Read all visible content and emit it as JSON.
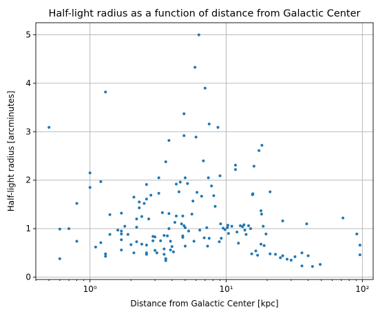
{
  "chart_data": {
    "type": "scatter",
    "title": "Half-light radius as a function of distance from Galactic Center",
    "xlabel": "Distance from Galactic Center [kpc]",
    "ylabel": "Half-light radius [arcminutes]",
    "xscale": "log",
    "xlim": [
      0.4,
      120
    ],
    "ylim": [
      -0.05,
      5.25
    ],
    "x_major_ticks": [
      1,
      10,
      100
    ],
    "x_tick_labels": [
      "10⁰",
      "10¹",
      "10²"
    ],
    "y_ticks": [
      0,
      1,
      2,
      3,
      4,
      5
    ],
    "y_tick_labels": [
      "0",
      "1",
      "2",
      "3",
      "4",
      "5"
    ],
    "grid": true,
    "marker_color": "#1f77b4",
    "points": [
      [
        0.5,
        3.09
      ],
      [
        0.6,
        0.99
      ],
      [
        0.6,
        0.38
      ],
      [
        0.7,
        1.0
      ],
      [
        0.8,
        1.52
      ],
      [
        0.8,
        0.74
      ],
      [
        1.0,
        2.15
      ],
      [
        1.0,
        1.85
      ],
      [
        1.1,
        0.62
      ],
      [
        1.2,
        1.97
      ],
      [
        1.2,
        0.71
      ],
      [
        1.3,
        3.82
      ],
      [
        1.3,
        0.48
      ],
      [
        1.3,
        0.43
      ],
      [
        1.4,
        1.29
      ],
      [
        1.4,
        0.88
      ],
      [
        1.6,
        0.97
      ],
      [
        1.7,
        1.32
      ],
      [
        1.7,
        0.95
      ],
      [
        1.7,
        0.89
      ],
      [
        1.7,
        0.77
      ],
      [
        1.7,
        0.56
      ],
      [
        1.8,
        1.05
      ],
      [
        1.9,
        0.88
      ],
      [
        2.0,
        0.67
      ],
      [
        2.1,
        1.65
      ],
      [
        2.1,
        0.5
      ],
      [
        2.2,
        1.2
      ],
      [
        2.2,
        1.03
      ],
      [
        2.2,
        0.73
      ],
      [
        2.3,
        1.55
      ],
      [
        2.3,
        1.43
      ],
      [
        2.4,
        0.68
      ],
      [
        2.4,
        1.25
      ],
      [
        2.5,
        1.52
      ],
      [
        2.6,
        1.91
      ],
      [
        2.6,
        1.61
      ],
      [
        2.6,
        0.66
      ],
      [
        2.6,
        0.5
      ],
      [
        2.6,
        0.47
      ],
      [
        2.7,
        1.2
      ],
      [
        2.8,
        1.69
      ],
      [
        2.9,
        0.84
      ],
      [
        2.9,
        0.75
      ],
      [
        3.0,
        0.83
      ],
      [
        3.0,
        0.55
      ],
      [
        3.1,
        0.5
      ],
      [
        3.2,
        1.73
      ],
      [
        3.2,
        2.05
      ],
      [
        3.3,
        0.75
      ],
      [
        3.4,
        1.33
      ],
      [
        3.5,
        0.86
      ],
      [
        3.5,
        0.58
      ],
      [
        3.5,
        0.47
      ],
      [
        3.6,
        2.38
      ],
      [
        3.6,
        0.38
      ],
      [
        3.6,
        0.34
      ],
      [
        3.7,
        0.85
      ],
      [
        3.8,
        1.0
      ],
      [
        3.8,
        1.31
      ],
      [
        3.9,
        0.74
      ],
      [
        3.9,
        0.56
      ],
      [
        3.8,
        2.82
      ],
      [
        4.0,
        0.63
      ],
      [
        4.1,
        0.52
      ],
      [
        4.3,
        1.92
      ],
      [
        4.2,
        1.13
      ],
      [
        4.3,
        1.26
      ],
      [
        4.5,
        1.76
      ],
      [
        4.6,
        1.96
      ],
      [
        4.7,
        1.1
      ],
      [
        4.8,
        0.82
      ],
      [
        4.8,
        1.26
      ],
      [
        4.8,
        0.85
      ],
      [
        4.9,
        2.92
      ],
      [
        4.9,
        1.06
      ],
      [
        4.9,
        3.37
      ],
      [
        5.0,
        2.05
      ],
      [
        5.0,
        1.02
      ],
      [
        5.0,
        0.64
      ],
      [
        5.2,
        1.93
      ],
      [
        5.3,
        0.95
      ],
      [
        5.6,
        1.3
      ],
      [
        5.7,
        1.57
      ],
      [
        5.8,
        0.74
      ],
      [
        5.9,
        4.33
      ],
      [
        6.0,
        2.89
      ],
      [
        6.1,
        1.75
      ],
      [
        6.3,
        5.0
      ],
      [
        6.4,
        0.97
      ],
      [
        6.6,
        1.67
      ],
      [
        6.8,
        2.4
      ],
      [
        6.9,
        0.81
      ],
      [
        7.0,
        3.9
      ],
      [
        7.2,
        1.02
      ],
      [
        7.3,
        0.64
      ],
      [
        7.4,
        2.05
      ],
      [
        7.5,
        3.16
      ],
      [
        7.5,
        0.8
      ],
      [
        7.8,
        1.88
      ],
      [
        8.1,
        1.68
      ],
      [
        8.3,
        1.46
      ],
      [
        8.7,
        3.09
      ],
      [
        8.9,
        0.73
      ],
      [
        9.0,
        2.09
      ],
      [
        9.1,
        1.1
      ],
      [
        9.2,
        0.8
      ],
      [
        9.5,
        1.01
      ],
      [
        9.8,
        0.98
      ],
      [
        10.2,
        1.02
      ],
      [
        10.4,
        0.9
      ],
      [
        10.3,
        1.07
      ],
      [
        11.0,
        1.05
      ],
      [
        11.7,
        2.31
      ],
      [
        11.7,
        2.22
      ],
      [
        12.0,
        0.93
      ],
      [
        12.3,
        0.7
      ],
      [
        12.7,
        1.06
      ],
      [
        13.2,
        1.04
      ],
      [
        13.5,
        1.08
      ],
      [
        13.7,
        0.97
      ],
      [
        14.0,
        0.88
      ],
      [
        14.6,
        1.06
      ],
      [
        15.1,
        1.0
      ],
      [
        15.4,
        0.48
      ],
      [
        15.6,
        1.7
      ],
      [
        15.7,
        1.72
      ],
      [
        16.0,
        2.29
      ],
      [
        16.5,
        0.54
      ],
      [
        17.0,
        0.45
      ],
      [
        17.4,
        2.61
      ],
      [
        18.0,
        1.37
      ],
      [
        18.2,
        1.3
      ],
      [
        18.3,
        2.72
      ],
      [
        18.7,
        1.05
      ],
      [
        18.0,
        0.68
      ],
      [
        19.0,
        0.65
      ],
      [
        19.6,
        0.89
      ],
      [
        21.0,
        1.76
      ],
      [
        21.0,
        0.48
      ],
      [
        23.0,
        0.47
      ],
      [
        25.0,
        0.4
      ],
      [
        26.0,
        1.16
      ],
      [
        26.0,
        0.44
      ],
      [
        28.0,
        0.37
      ],
      [
        30.0,
        0.35
      ],
      [
        32.0,
        0.42
      ],
      [
        36.0,
        0.5
      ],
      [
        36.0,
        0.23
      ],
      [
        39.0,
        1.1
      ],
      [
        40.0,
        0.44
      ],
      [
        43.0,
        0.22
      ],
      [
        49.0,
        0.26
      ],
      [
        72.0,
        1.22
      ],
      [
        91.0,
        0.89
      ],
      [
        96.0,
        0.66
      ],
      [
        96.0,
        0.46
      ]
    ]
  }
}
